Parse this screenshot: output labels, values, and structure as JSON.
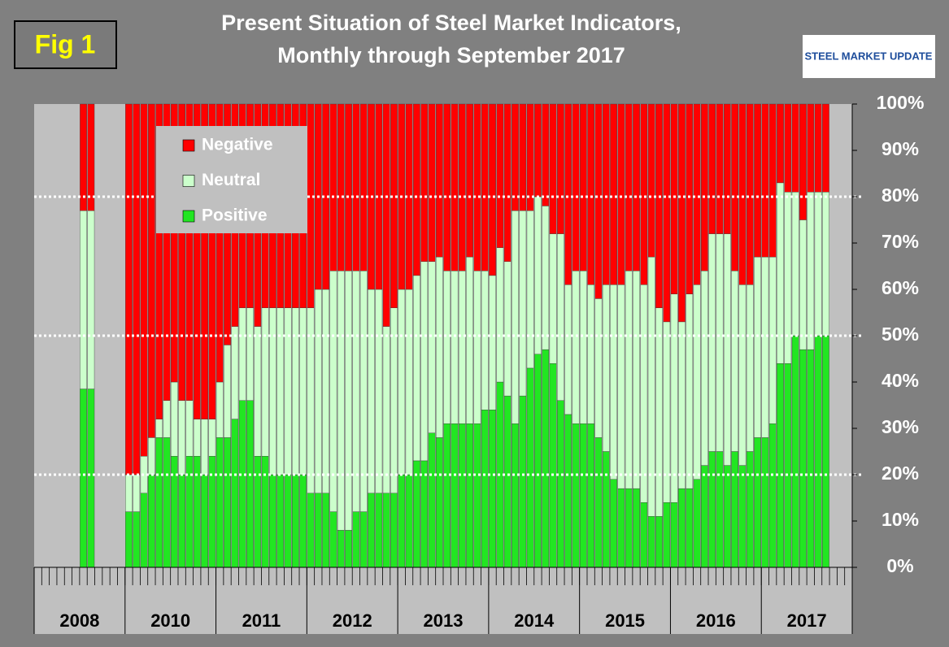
{
  "chart_data": {
    "type": "stacked_bar_100",
    "title": [
      "Present Situation of Steel Market Indicators,",
      "Monthly through September 2017"
    ],
    "badge": "Fig 1",
    "logo": "STEEL MARKET UPDATE",
    "categories": [
      null,
      null,
      null,
      null,
      null,
      null,
      null,
      null,
      null,
      null,
      null,
      null,
      null,
      null,
      null,
      null,
      null,
      null,
      null,
      null,
      null,
      null,
      null,
      null,
      null,
      null,
      null,
      null,
      null,
      null,
      null,
      null,
      null,
      null,
      null,
      null,
      null,
      null,
      null,
      null,
      null,
      null,
      null,
      null,
      null,
      null,
      null,
      null,
      null,
      null,
      null,
      null,
      null,
      null,
      null,
      null,
      null,
      null,
      null,
      null,
      null,
      null,
      null,
      null,
      null,
      null,
      null,
      null,
      null,
      null,
      null,
      null,
      null,
      null,
      null,
      null,
      null,
      null,
      null,
      null,
      null,
      null,
      null,
      null,
      null,
      null,
      null,
      null,
      null,
      null,
      null,
      null,
      null,
      null,
      null,
      null,
      null,
      null,
      null,
      null,
      null,
      null,
      null,
      null,
      null,
      null,
      null,
      null
    ],
    "year_labels": [
      "2008",
      "2010",
      "2011",
      "2012",
      "2013",
      "2014",
      "2015",
      "2016",
      "2017"
    ],
    "series": [
      {
        "name": "Positive",
        "color": "#22e622",
        "values": [
          null,
          null,
          null,
          null,
          null,
          null,
          38.5,
          38.5,
          null,
          null,
          null,
          null,
          12,
          12,
          16,
          20,
          28,
          28,
          24,
          20,
          24,
          24,
          20,
          24,
          28,
          28,
          32,
          36,
          36,
          24,
          24,
          20,
          20,
          20,
          20,
          20,
          16,
          16,
          16,
          12,
          8,
          8,
          12,
          12,
          16,
          16,
          16,
          16,
          20,
          20,
          23,
          23,
          29,
          28,
          31,
          31,
          31,
          31,
          31,
          34,
          34,
          40,
          37,
          31,
          37,
          43,
          46,
          47,
          44,
          36,
          33,
          31,
          31,
          31,
          28,
          25,
          19,
          17,
          17,
          17,
          14,
          11,
          11,
          14,
          14,
          17,
          17,
          19,
          22,
          25,
          25,
          22,
          25,
          22,
          25,
          28,
          28,
          31,
          44,
          44,
          50,
          47,
          47,
          50,
          50,
          null,
          null,
          null
        ]
      },
      {
        "name": "Neutral",
        "color": "#ccffcc",
        "values": [
          null,
          null,
          null,
          null,
          null,
          null,
          38.5,
          38.5,
          null,
          null,
          null,
          null,
          8,
          8,
          8,
          8,
          4,
          8,
          16,
          16,
          12,
          8,
          12,
          8,
          12,
          20,
          20,
          20,
          20,
          28,
          32,
          36,
          36,
          36,
          36,
          36,
          40,
          44,
          44,
          52,
          56,
          56,
          52,
          52,
          44,
          44,
          36,
          40,
          40,
          40,
          40,
          43,
          37,
          39,
          33,
          33,
          33,
          36,
          33,
          30,
          29,
          29,
          29,
          46,
          40,
          34,
          34,
          31,
          28,
          36,
          28,
          33,
          33,
          30,
          30,
          36,
          42,
          44,
          47,
          47,
          47,
          56,
          45,
          39,
          45,
          36,
          42,
          42,
          42,
          47,
          47,
          50,
          39,
          39,
          36,
          39,
          39,
          36,
          39,
          37,
          31,
          28,
          34,
          31,
          31,
          null,
          null,
          null
        ]
      },
      {
        "name": "Negative",
        "color": "#ff0000",
        "values": [
          null,
          null,
          null,
          null,
          null,
          null,
          23,
          23,
          null,
          null,
          null,
          null,
          80,
          80,
          76,
          72,
          68,
          64,
          60,
          64,
          64,
          68,
          68,
          68,
          60,
          52,
          48,
          44,
          44,
          48,
          44,
          44,
          44,
          44,
          44,
          44,
          44,
          40,
          40,
          36,
          36,
          36,
          36,
          36,
          40,
          40,
          48,
          44,
          40,
          40,
          37,
          34,
          34,
          33,
          36,
          36,
          36,
          33,
          36,
          36,
          37,
          31,
          34,
          23,
          23,
          23,
          20,
          22,
          28,
          28,
          39,
          36,
          36,
          39,
          42,
          39,
          39,
          39,
          36,
          36,
          39,
          33,
          44,
          47,
          41,
          47,
          41,
          39,
          36,
          28,
          28,
          28,
          36,
          39,
          39,
          33,
          33,
          33,
          17,
          19,
          19,
          25,
          19,
          19,
          19,
          null,
          null,
          null
        ]
      }
    ],
    "ylim": [
      0,
      100
    ],
    "yticks": [
      {
        "value": 0,
        "label": "0%"
      },
      {
        "value": 10,
        "label": "10%"
      },
      {
        "value": 20,
        "label": "20%"
      },
      {
        "value": 30,
        "label": "30%"
      },
      {
        "value": 40,
        "label": "40%"
      },
      {
        "value": 50,
        "label": "50%"
      },
      {
        "value": 60,
        "label": "60%"
      },
      {
        "value": 70,
        "label": "70%"
      },
      {
        "value": 80,
        "label": "80%"
      },
      {
        "value": 90,
        "label": "90%"
      },
      {
        "value": 100,
        "label": "100%"
      }
    ],
    "reference_lines": [
      20,
      50,
      80
    ],
    "legend_position": "upper left"
  }
}
